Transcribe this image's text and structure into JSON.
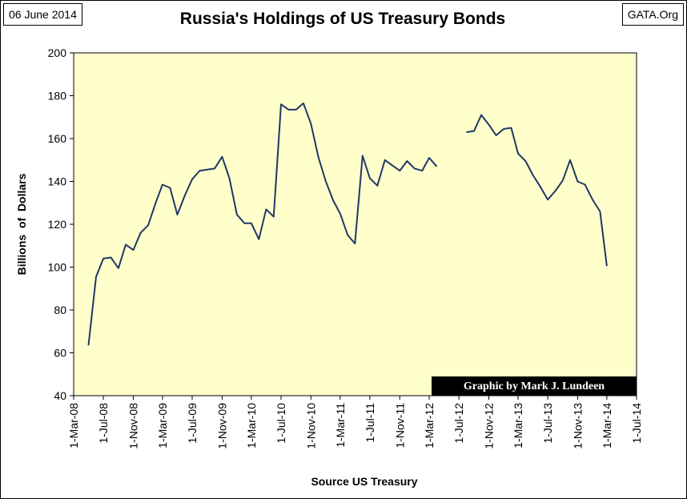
{
  "header": {
    "date": "06 June 2014",
    "source_tag": "GATA.Org"
  },
  "chart_data": {
    "type": "line",
    "title": "Russia's Holdings of US Treasury Bonds",
    "xlabel": "Source US Treasury",
    "ylabel": "Billions  of  Dollars",
    "credit": "Graphic by Mark J. Lundeen",
    "ylim": [
      40,
      200
    ],
    "yticks": [
      40,
      60,
      80,
      100,
      120,
      140,
      160,
      180,
      200
    ],
    "x_range": [
      "2008-03-01",
      "2014-07-01"
    ],
    "x_tick_labels": [
      "1-Mar-08",
      "1-Jul-08",
      "1-Nov-08",
      "1-Mar-09",
      "1-Jul-09",
      "1-Nov-09",
      "1-Mar-10",
      "1-Jul-10",
      "1-Nov-10",
      "1-Mar-11",
      "1-Jul-11",
      "1-Nov-11",
      "1-Mar-12",
      "1-Jul-12",
      "1-Nov-12",
      "1-Mar-13",
      "1-Jul-13",
      "1-Nov-13",
      "1-Mar-14",
      "1-Jul-14"
    ],
    "grid": false,
    "colors": {
      "plot_bg": "#FFFFCC",
      "line": "#1F3864",
      "grid": "#000000"
    },
    "series": [
      {
        "segments": [
          [
            [
              "2008-05-01",
              63.5
            ],
            [
              "2008-06-01",
              95.5
            ],
            [
              "2008-07-01",
              104.0
            ],
            [
              "2008-08-01",
              104.5
            ],
            [
              "2008-09-01",
              99.5
            ],
            [
              "2008-10-01",
              110.5
            ],
            [
              "2008-11-01",
              108.0
            ],
            [
              "2008-12-01",
              116.0
            ],
            [
              "2009-01-01",
              119.5
            ],
            [
              "2009-02-01",
              130.0
            ],
            [
              "2009-03-01",
              138.5
            ],
            [
              "2009-04-01",
              137.0
            ],
            [
              "2009-05-01",
              124.5
            ],
            [
              "2009-06-01",
              133.5
            ],
            [
              "2009-07-01",
              141.0
            ],
            [
              "2009-08-01",
              145.0
            ],
            [
              "2009-09-01",
              145.5
            ],
            [
              "2009-10-01",
              146.0
            ],
            [
              "2009-11-01",
              151.5
            ],
            [
              "2009-12-01",
              141.5
            ],
            [
              "2010-01-01",
              124.5
            ],
            [
              "2010-02-01",
              120.5
            ],
            [
              "2010-03-01",
              120.5
            ],
            [
              "2010-04-01",
              113.0
            ],
            [
              "2010-05-01",
              127.0
            ],
            [
              "2010-06-01",
              123.5
            ],
            [
              "2010-07-01",
              176.0
            ],
            [
              "2010-08-01",
              173.5
            ],
            [
              "2010-09-01",
              173.5
            ],
            [
              "2010-10-01",
              176.5
            ],
            [
              "2010-11-01",
              167.0
            ],
            [
              "2010-12-01",
              151.5
            ],
            [
              "2011-01-01",
              140.0
            ],
            [
              "2011-02-01",
              131.0
            ],
            [
              "2011-03-01",
              125.0
            ],
            [
              "2011-04-01",
              115.0
            ],
            [
              "2011-05-01",
              111.0
            ],
            [
              "2011-06-01",
              152.0
            ],
            [
              "2011-07-01",
              141.5
            ],
            [
              "2011-08-01",
              138.0
            ],
            [
              "2011-09-01",
              150.0
            ],
            [
              "2011-10-01",
              147.5
            ],
            [
              "2011-11-01",
              145.0
            ],
            [
              "2011-12-01",
              149.5
            ],
            [
              "2012-01-01",
              146.0
            ],
            [
              "2012-02-01",
              145.0
            ],
            [
              "2012-03-01",
              151.0
            ],
            [
              "2012-04-01",
              147.0
            ]
          ],
          [
            [
              "2012-08-01",
              163.0
            ],
            [
              "2012-09-01",
              163.5
            ],
            [
              "2012-10-01",
              171.0
            ],
            [
              "2012-11-01",
              166.5
            ],
            [
              "2012-12-01",
              161.5
            ],
            [
              "2013-01-01",
              164.5
            ],
            [
              "2013-02-01",
              165.0
            ],
            [
              "2013-03-01",
              153.0
            ],
            [
              "2013-04-01",
              149.5
            ],
            [
              "2013-05-01",
              143.0
            ],
            [
              "2013-06-01",
              137.5
            ],
            [
              "2013-07-01",
              131.5
            ],
            [
              "2013-08-01",
              135.5
            ],
            [
              "2013-09-01",
              140.5
            ],
            [
              "2013-10-01",
              150.0
            ],
            [
              "2013-11-01",
              140.0
            ],
            [
              "2013-12-01",
              138.5
            ],
            [
              "2014-01-01",
              131.5
            ],
            [
              "2014-02-01",
              126.0
            ],
            [
              "2014-03-01",
              100.5
            ]
          ]
        ]
      }
    ]
  }
}
